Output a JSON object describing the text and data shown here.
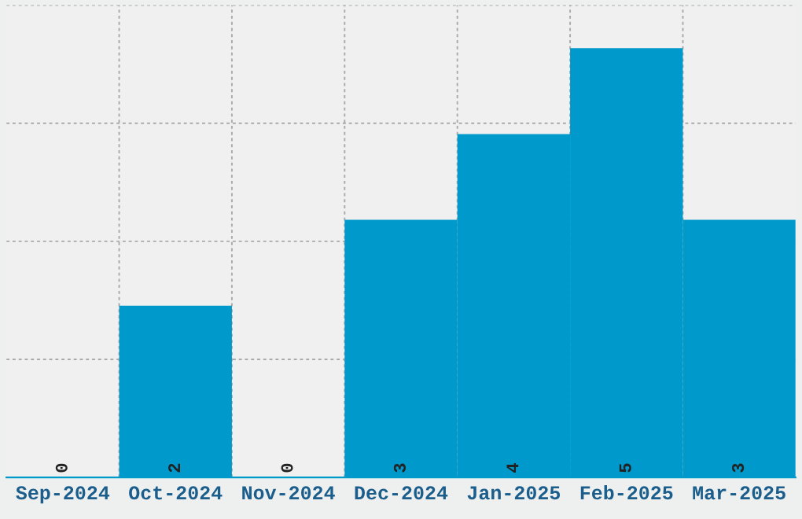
{
  "chart_data": {
    "type": "bar",
    "categories": [
      "Sep-2024",
      "Oct-2024",
      "Nov-2024",
      "Dec-2024",
      "Jan-2025",
      "Feb-2025",
      "Mar-2025"
    ],
    "values": [
      0,
      2,
      0,
      3,
      4,
      5,
      3
    ],
    "color": "#0099cc",
    "ylim": [
      0,
      5.5
    ],
    "yticks": [
      {
        "value": 0,
        "label": null
      },
      {
        "value": 1.375,
        "label": null
      },
      {
        "value": 2.75,
        "label": null
      },
      {
        "value": 4.125,
        "label": null
      },
      {
        "value": 5.5,
        "label": null
      }
    ],
    "tick_labels": "x",
    "data_labels": true,
    "grid": true
  }
}
